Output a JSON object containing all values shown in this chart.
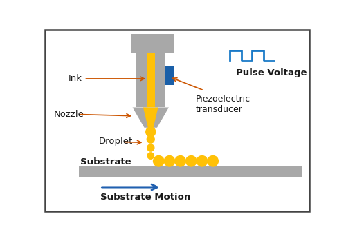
{
  "bg_color": "#ffffff",
  "border_color": "#444444",
  "gray": "#a8a8a8",
  "gold": "#FFC107",
  "blue_piezo": "#1A5FA8",
  "blue_arrow": "#2060B0",
  "arrow_color": "#CC5500",
  "text_color": "#1a1a1a",
  "pulse_color": "#1A7AC8",
  "label_fontsize": 9.5,
  "figsize": [
    5.0,
    3.46
  ],
  "dpi": 100,
  "labels": {
    "ink": "Ink",
    "nozzle": "Nozzle",
    "droplet": "Droplet",
    "substrate": "Substrate",
    "substrate_motion": "Substrate Motion",
    "pulse_voltage": "Pulse Voltage",
    "piezo": "Piezoelectric\ntransducer"
  }
}
